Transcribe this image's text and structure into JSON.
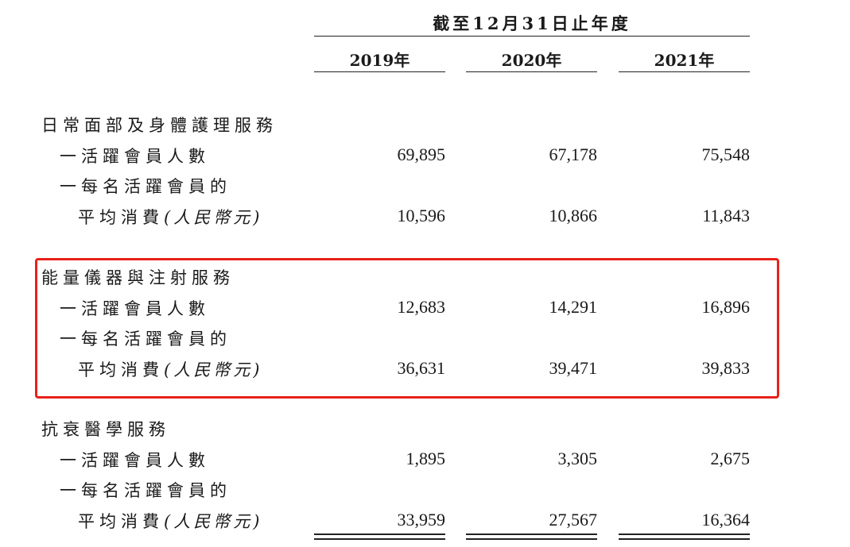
{
  "header": {
    "period": "截至12月31日止年度",
    "years": [
      "2019年",
      "2020年",
      "2021年"
    ]
  },
  "labels": {
    "active_members": "一活躍會員人數",
    "avg_spend_line1": "一每名活躍會員的",
    "avg_spend_line2": "平均消費",
    "unit": "(人民幣元)"
  },
  "sections": [
    {
      "title": "日常面部及身體護理服務",
      "active_members": [
        "69,895",
        "67,178",
        "75,548"
      ],
      "avg_spend": [
        "10,596",
        "10,866",
        "11,843"
      ]
    },
    {
      "title": "能量儀器與注射服務",
      "active_members": [
        "12,683",
        "14,291",
        "16,896"
      ],
      "avg_spend": [
        "36,631",
        "39,471",
        "39,833"
      ]
    },
    {
      "title": "抗衰醫學服務",
      "active_members": [
        "1,895",
        "3,305",
        "2,675"
      ],
      "avg_spend": [
        "33,959",
        "27,567",
        "16,364"
      ]
    }
  ],
  "highlight_color": "#e8211b"
}
